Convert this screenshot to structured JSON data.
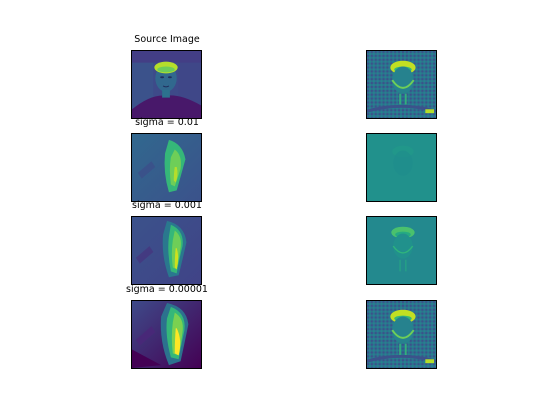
{
  "figure": {
    "background": "#ffffff",
    "colormap": "viridis",
    "rows": [
      {
        "title": "Source Image",
        "left_content": "face portrait",
        "right_content": "face edge-enhanced"
      },
      {
        "title": "sigma = 0.01",
        "left_content": "blurred streak",
        "right_content": "near-uniform teal"
      },
      {
        "title": "sigma = 0.001",
        "left_content": "blurred streak",
        "right_content": "faint face"
      },
      {
        "title": "sigma = 0.00001",
        "left_content": "blurred streak strong",
        "right_content": "face restored"
      }
    ],
    "colors": {
      "dark": "#440154",
      "purple": "#46337e",
      "blue": "#365c8d",
      "teal": "#277f8e",
      "green": "#1fa187",
      "lime": "#4ac16d",
      "yellowgreen": "#a0da39",
      "yellow": "#fde725"
    }
  }
}
